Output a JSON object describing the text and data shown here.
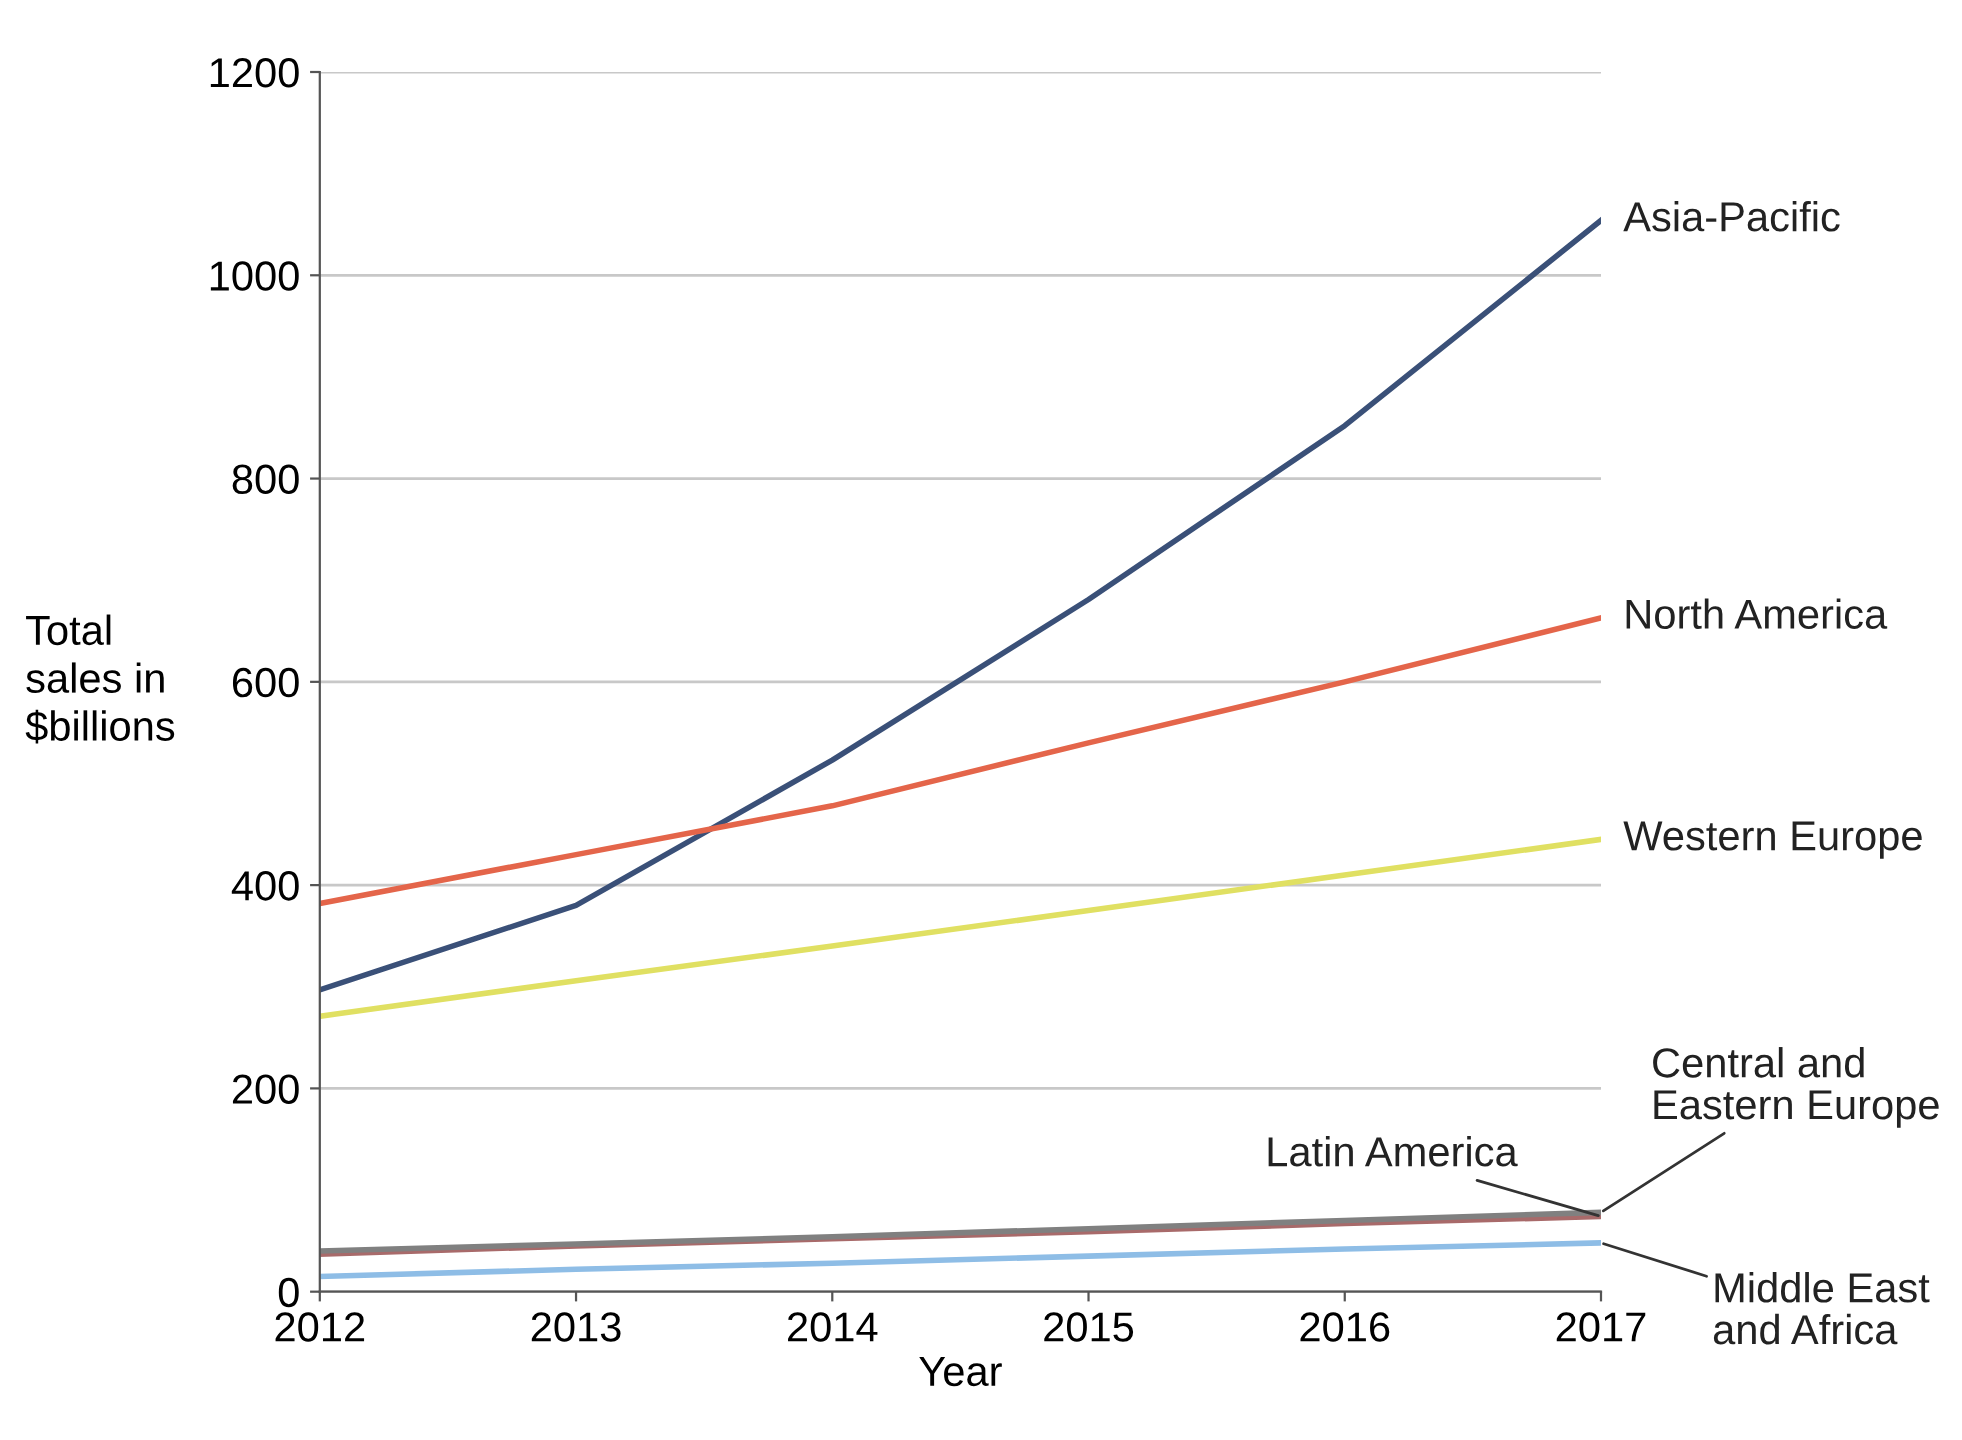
{
  "chart_data": {
    "type": "line",
    "xlabel": "Year",
    "ylabel": "Total\nsales in\n$billions",
    "x": [
      2012,
      2013,
      2014,
      2015,
      2016,
      2017
    ],
    "xlim": [
      2012,
      2017
    ],
    "xticks": [
      2012,
      2013,
      2014,
      2015,
      2016,
      2017
    ],
    "ylim": [
      0,
      1200
    ],
    "yticks": [
      0,
      200,
      400,
      600,
      800,
      1000,
      1200
    ],
    "grid": "y",
    "legend": false,
    "marker": "none",
    "line_style": "solid",
    "series": [
      {
        "name": "Asia-Pacific",
        "color": "#3a5078",
        "values": [
          297,
          380,
          523,
          681,
          852,
          1054
        ]
      },
      {
        "name": "North America",
        "color": "#e4654a",
        "values": [
          382,
          430,
          478,
          540,
          600,
          663
        ]
      },
      {
        "name": "Western Europe",
        "color": "#e0e062",
        "values": [
          271,
          306,
          340,
          375,
          410,
          445
        ]
      },
      {
        "name": "Latin America",
        "color": "#a86a6a",
        "values": [
          37,
          45,
          52,
          59,
          67,
          74
        ]
      },
      {
        "name": "Central and\nEastern Europe",
        "color": "#808080",
        "values": [
          40,
          47,
          54,
          62,
          70,
          78
        ]
      },
      {
        "name": "Middle East\nand Africa",
        "color": "#8ebde6",
        "values": [
          15,
          22,
          28,
          35,
          42,
          48
        ]
      }
    ]
  }
}
